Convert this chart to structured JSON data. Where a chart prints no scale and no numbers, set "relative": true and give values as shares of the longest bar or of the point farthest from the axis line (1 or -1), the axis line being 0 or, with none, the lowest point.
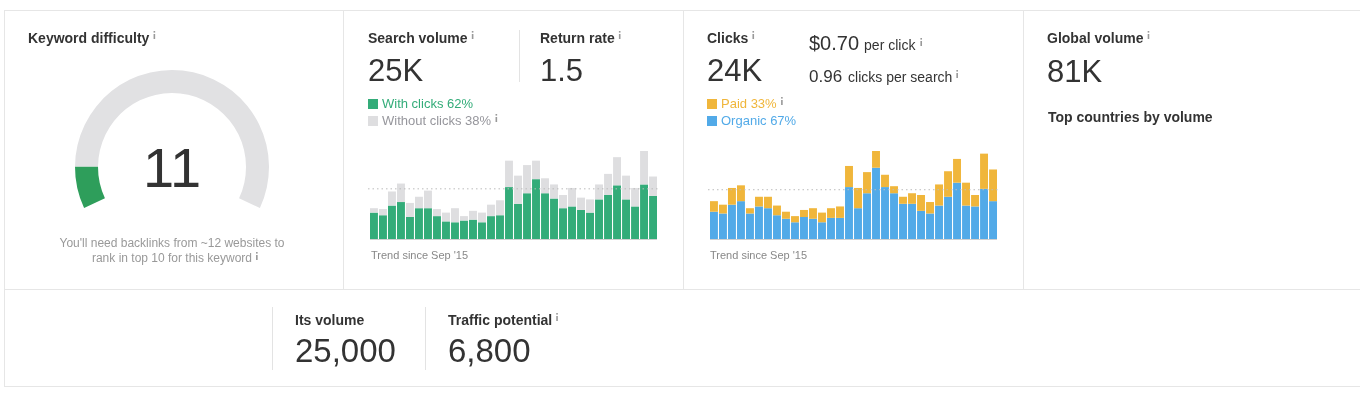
{
  "chart_data": [
    {
      "type": "donut",
      "title": "Keyword difficulty",
      "categories": [
        null,
        null
      ],
      "values": [
        11,
        89
      ],
      "colors": [
        "#2e9e5b",
        "#e1e1e3"
      ],
      "annotations": [
        "11",
        "You'll need backlinks from ~12 websites to rank in top 10 for this keyword"
      ]
    },
    {
      "type": "bar",
      "title": "Search volume",
      "stacked": true,
      "legend": "top left",
      "relative": true,
      "categories": [
        null,
        null,
        null,
        null,
        null,
        null,
        null,
        null,
        null,
        null,
        null,
        null,
        null,
        null,
        null,
        null,
        null,
        null,
        null,
        null,
        null,
        null,
        null,
        null,
        null,
        null,
        null,
        null,
        null,
        null,
        null,
        null
      ],
      "series": [
        {
          "name": "With clicks 62%",
          "color": "#33ac79",
          "values": [
            0.3,
            0.27,
            0.38,
            0.42,
            0.25,
            0.35,
            0.35,
            0.26,
            0.2,
            0.19,
            0.21,
            0.22,
            0.19,
            0.26,
            0.27,
            0.59,
            0.4,
            0.52,
            0.68,
            0.52,
            0.46,
            0.35,
            0.37,
            0.33,
            0.3,
            0.45,
            0.5,
            0.61,
            0.45,
            0.37,
            0.62,
            0.49
          ]
        },
        {
          "name": "Without clicks 38%",
          "color": "#dedee0",
          "values": [
            0.05,
            0.07,
            0.16,
            0.21,
            0.16,
            0.13,
            0.2,
            0.08,
            0.1,
            0.16,
            0.05,
            0.1,
            0.11,
            0.13,
            0.17,
            0.3,
            0.32,
            0.32,
            0.21,
            0.17,
            0.16,
            0.15,
            0.21,
            0.14,
            0.15,
            0.17,
            0.24,
            0.32,
            0.27,
            0.21,
            0.38,
            0.22
          ]
        }
      ],
      "ref_lines": [
        {
          "axis": "y",
          "value": 0.57,
          "color": "#bbbbbb",
          "line_style": "dotted"
        }
      ],
      "annotations": [
        "25K",
        "Return rate",
        "1.5",
        "Trend since Sep '15"
      ]
    },
    {
      "type": "bar",
      "title": "Clicks",
      "stacked": true,
      "legend": "top left",
      "relative": true,
      "categories": [
        null,
        null,
        null,
        null,
        null,
        null,
        null,
        null,
        null,
        null,
        null,
        null,
        null,
        null,
        null,
        null,
        null,
        null,
        null,
        null,
        null,
        null,
        null,
        null,
        null,
        null,
        null,
        null,
        null,
        null,
        null,
        null
      ],
      "series": [
        {
          "name": "Organic 67%",
          "color": "#52aae8",
          "values": [
            0.31,
            0.29,
            0.39,
            0.43,
            0.29,
            0.37,
            0.35,
            0.27,
            0.23,
            0.19,
            0.25,
            0.23,
            0.19,
            0.24,
            0.24,
            0.59,
            0.35,
            0.52,
            0.81,
            0.59,
            0.52,
            0.4,
            0.4,
            0.32,
            0.29,
            0.38,
            0.48,
            0.64,
            0.38,
            0.37,
            0.57,
            0.43
          ]
        },
        {
          "name": "Paid 33%",
          "color": "#f0b63b",
          "values": [
            0.12,
            0.1,
            0.19,
            0.18,
            0.06,
            0.11,
            0.13,
            0.11,
            0.08,
            0.07,
            0.08,
            0.12,
            0.11,
            0.11,
            0.13,
            0.24,
            0.23,
            0.24,
            0.19,
            0.14,
            0.08,
            0.08,
            0.12,
            0.18,
            0.13,
            0.24,
            0.29,
            0.27,
            0.26,
            0.13,
            0.4,
            0.36
          ]
        }
      ],
      "ref_lines": [
        {
          "axis": "y",
          "value": 0.56,
          "color": "#bbbbbb",
          "line_style": "dotted"
        }
      ],
      "annotations": [
        "24K",
        "$0.70",
        "per click",
        "0.96",
        "clicks per search",
        "Trend since Sep '15"
      ]
    },
    {
      "type": "other",
      "title": "Global volume",
      "annotations": [
        "81K",
        "Top countries by volume"
      ]
    },
    {
      "type": "other",
      "annotations": [
        "Its volume",
        "25,000",
        "Traffic potential",
        "6,800"
      ]
    }
  ]
}
